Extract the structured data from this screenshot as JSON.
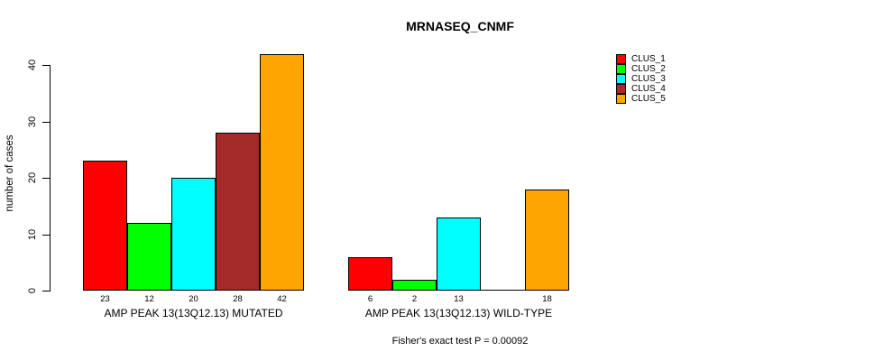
{
  "chart_data": {
    "type": "bar",
    "title": "MRNASEQ_CNMF",
    "ylabel": "number of cases",
    "xlabel": "",
    "yticks": [
      0,
      10,
      20,
      30,
      40
    ],
    "ylim": [
      0,
      43.2
    ],
    "grid": false,
    "legend_position": "top-right",
    "categories": [
      "AMP PEAK 13(13Q12.13) MUTATED",
      "AMP PEAK 13(13Q12.13) WILD-TYPE"
    ],
    "series": [
      {
        "name": "CLUS_1",
        "color": "#ff0000",
        "values": [
          23,
          6
        ]
      },
      {
        "name": "CLUS_2",
        "color": "#00ff00",
        "values": [
          12,
          2
        ]
      },
      {
        "name": "CLUS_3",
        "color": "#00ffff",
        "values": [
          20,
          13
        ]
      },
      {
        "name": "CLUS_4",
        "color": "#a52a2a",
        "values": [
          28,
          0
        ]
      },
      {
        "name": "CLUS_5",
        "color": "#ffa500",
        "values": [
          42,
          18
        ]
      }
    ],
    "bar_value_labels": {
      "shown": true,
      "hide_zero": true
    },
    "annotation": "Fisher's exact test P = 0.00092"
  }
}
